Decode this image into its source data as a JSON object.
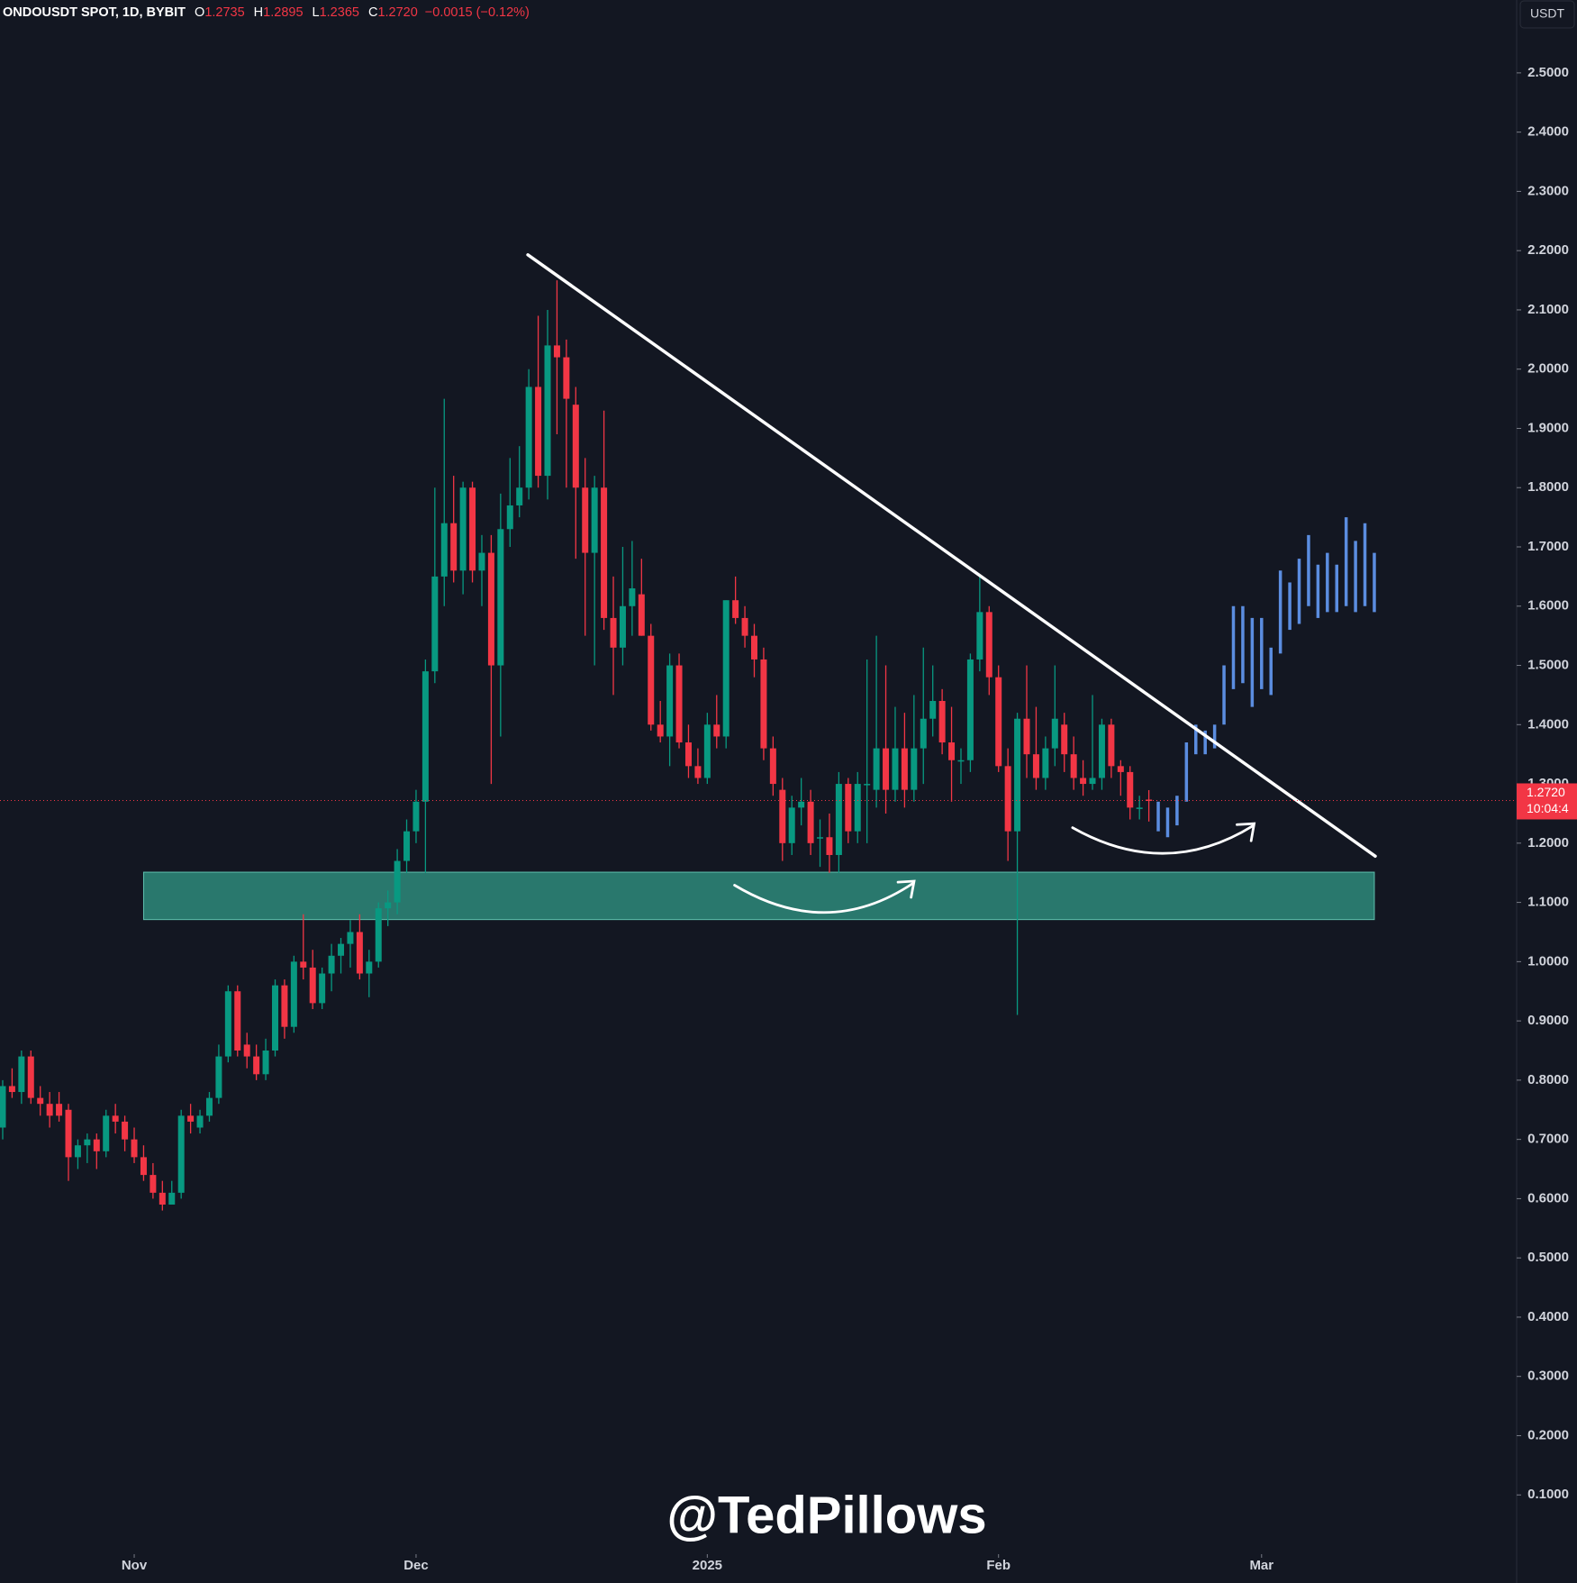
{
  "chart_data": {
    "type": "candlestick",
    "title": "ONDOUSDT SPOT, 1D, BYBIT",
    "header": {
      "O": "1.2735",
      "H": "1.2895",
      "L": "1.2365",
      "C": "1.2720",
      "change": "−0.0015 (−0.12%)"
    },
    "o_key": "O",
    "h_key": "H",
    "l_key": "L",
    "c_key": "C",
    "currency": "USDT",
    "watermark": "@TedPillows",
    "price_label": {
      "price": "1.2720",
      "countdown": "10:04:4"
    },
    "up_color": "#089981",
    "down_color": "#f23645",
    "projection_color": "#5b8de0",
    "zone_color": "#2e8a7a",
    "candles": [
      [
        0.72,
        0.8,
        0.7,
        0.79
      ],
      [
        0.79,
        0.82,
        0.77,
        0.78
      ],
      [
        0.78,
        0.85,
        0.76,
        0.84
      ],
      [
        0.84,
        0.85,
        0.76,
        0.77
      ],
      [
        0.77,
        0.79,
        0.74,
        0.76
      ],
      [
        0.76,
        0.78,
        0.72,
        0.74
      ],
      [
        0.76,
        0.78,
        0.73,
        0.74
      ],
      [
        0.75,
        0.76,
        0.63,
        0.67
      ],
      [
        0.67,
        0.7,
        0.65,
        0.69
      ],
      [
        0.69,
        0.71,
        0.66,
        0.7
      ],
      [
        0.7,
        0.71,
        0.65,
        0.68
      ],
      [
        0.68,
        0.75,
        0.67,
        0.74
      ],
      [
        0.74,
        0.76,
        0.71,
        0.73
      ],
      [
        0.73,
        0.74,
        0.68,
        0.7
      ],
      [
        0.7,
        0.72,
        0.66,
        0.67
      ],
      [
        0.67,
        0.69,
        0.63,
        0.64
      ],
      [
        0.64,
        0.66,
        0.6,
        0.61
      ],
      [
        0.61,
        0.63,
        0.58,
        0.59
      ],
      [
        0.59,
        0.63,
        0.59,
        0.61
      ],
      [
        0.61,
        0.75,
        0.6,
        0.74
      ],
      [
        0.74,
        0.76,
        0.71,
        0.73
      ],
      [
        0.72,
        0.75,
        0.71,
        0.74
      ],
      [
        0.74,
        0.78,
        0.73,
        0.77
      ],
      [
        0.77,
        0.86,
        0.76,
        0.84
      ],
      [
        0.84,
        0.96,
        0.83,
        0.95
      ],
      [
        0.95,
        0.96,
        0.84,
        0.85
      ],
      [
        0.86,
        0.88,
        0.82,
        0.84
      ],
      [
        0.84,
        0.86,
        0.8,
        0.81
      ],
      [
        0.81,
        0.87,
        0.8,
        0.85
      ],
      [
        0.85,
        0.97,
        0.84,
        0.96
      ],
      [
        0.96,
        0.97,
        0.87,
        0.89
      ],
      [
        0.89,
        1.01,
        0.88,
        1.0
      ],
      [
        1.0,
        1.08,
        0.97,
        0.99
      ],
      [
        0.99,
        1.02,
        0.92,
        0.93
      ],
      [
        0.93,
        0.99,
        0.92,
        0.98
      ],
      [
        0.98,
        1.03,
        0.95,
        1.01
      ],
      [
        1.01,
        1.04,
        0.98,
        1.03
      ],
      [
        1.03,
        1.07,
        0.99,
        1.05
      ],
      [
        1.05,
        1.08,
        0.97,
        0.98
      ],
      [
        0.98,
        1.02,
        0.94,
        1.0
      ],
      [
        1.0,
        1.1,
        0.99,
        1.09
      ],
      [
        1.09,
        1.12,
        1.06,
        1.1
      ],
      [
        1.1,
        1.19,
        1.08,
        1.17
      ],
      [
        1.17,
        1.24,
        1.15,
        1.22
      ],
      [
        1.22,
        1.29,
        1.2,
        1.27
      ],
      [
        1.27,
        1.51,
        1.15,
        1.49
      ],
      [
        1.49,
        1.8,
        1.47,
        1.65
      ],
      [
        1.65,
        1.95,
        1.6,
        1.74
      ],
      [
        1.74,
        1.82,
        1.64,
        1.66
      ],
      [
        1.66,
        1.81,
        1.62,
        1.8
      ],
      [
        1.8,
        1.81,
        1.64,
        1.66
      ],
      [
        1.66,
        1.72,
        1.6,
        1.69
      ],
      [
        1.69,
        1.72,
        1.3,
        1.5
      ],
      [
        1.5,
        1.79,
        1.38,
        1.73
      ],
      [
        1.73,
        1.85,
        1.7,
        1.77
      ],
      [
        1.77,
        1.87,
        1.75,
        1.8
      ],
      [
        1.8,
        2.0,
        1.78,
        1.97
      ],
      [
        1.97,
        2.09,
        1.8,
        1.82
      ],
      [
        1.82,
        2.1,
        1.78,
        2.04
      ],
      [
        2.04,
        2.15,
        1.89,
        2.02
      ],
      [
        2.02,
        2.05,
        1.8,
        1.95
      ],
      [
        1.94,
        1.97,
        1.68,
        1.8
      ],
      [
        1.8,
        1.85,
        1.55,
        1.69
      ],
      [
        1.69,
        1.82,
        1.5,
        1.8
      ],
      [
        1.8,
        1.93,
        1.56,
        1.58
      ],
      [
        1.58,
        1.65,
        1.45,
        1.53
      ],
      [
        1.53,
        1.7,
        1.5,
        1.6
      ],
      [
        1.6,
        1.71,
        1.55,
        1.63
      ],
      [
        1.62,
        1.68,
        1.55,
        1.55
      ],
      [
        1.55,
        1.57,
        1.39,
        1.4
      ],
      [
        1.4,
        1.44,
        1.37,
        1.38
      ],
      [
        1.38,
        1.52,
        1.33,
        1.5
      ],
      [
        1.5,
        1.52,
        1.36,
        1.37
      ],
      [
        1.37,
        1.4,
        1.31,
        1.33
      ],
      [
        1.33,
        1.36,
        1.3,
        1.31
      ],
      [
        1.31,
        1.42,
        1.3,
        1.4
      ],
      [
        1.4,
        1.45,
        1.36,
        1.38
      ],
      [
        1.38,
        1.61,
        1.36,
        1.61
      ],
      [
        1.61,
        1.65,
        1.57,
        1.58
      ],
      [
        1.58,
        1.6,
        1.53,
        1.55
      ],
      [
        1.55,
        1.57,
        1.48,
        1.51
      ],
      [
        1.51,
        1.53,
        1.34,
        1.36
      ],
      [
        1.36,
        1.38,
        1.28,
        1.3
      ],
      [
        1.29,
        1.31,
        1.17,
        1.2
      ],
      [
        1.2,
        1.28,
        1.18,
        1.26
      ],
      [
        1.26,
        1.31,
        1.23,
        1.27
      ],
      [
        1.27,
        1.29,
        1.18,
        1.2
      ],
      [
        1.21,
        1.24,
        1.16,
        1.21
      ],
      [
        1.21,
        1.25,
        1.15,
        1.18
      ],
      [
        1.18,
        1.32,
        1.15,
        1.3
      ],
      [
        1.3,
        1.31,
        1.2,
        1.22
      ],
      [
        1.22,
        1.32,
        1.2,
        1.3
      ],
      [
        1.3,
        1.51,
        1.2,
        1.3
      ],
      [
        1.29,
        1.55,
        1.26,
        1.36
      ],
      [
        1.36,
        1.5,
        1.25,
        1.29
      ],
      [
        1.29,
        1.43,
        1.27,
        1.36
      ],
      [
        1.36,
        1.42,
        1.26,
        1.29
      ],
      [
        1.29,
        1.45,
        1.27,
        1.36
      ],
      [
        1.36,
        1.53,
        1.3,
        1.41
      ],
      [
        1.41,
        1.5,
        1.38,
        1.44
      ],
      [
        1.44,
        1.46,
        1.35,
        1.37
      ],
      [
        1.37,
        1.43,
        1.27,
        1.34
      ],
      [
        1.34,
        1.36,
        1.3,
        1.34
      ],
      [
        1.34,
        1.52,
        1.32,
        1.51
      ],
      [
        1.51,
        1.65,
        1.49,
        1.59
      ],
      [
        1.59,
        1.6,
        1.45,
        1.48
      ],
      [
        1.48,
        1.5,
        1.32,
        1.33
      ],
      [
        1.33,
        1.36,
        1.17,
        1.22
      ],
      [
        1.22,
        1.42,
        0.91,
        1.41
      ],
      [
        1.41,
        1.5,
        1.31,
        1.35
      ],
      [
        1.35,
        1.43,
        1.29,
        1.31
      ],
      [
        1.31,
        1.38,
        1.29,
        1.36
      ],
      [
        1.36,
        1.5,
        1.33,
        1.41
      ],
      [
        1.4,
        1.42,
        1.32,
        1.35
      ],
      [
        1.35,
        1.38,
        1.29,
        1.31
      ],
      [
        1.31,
        1.34,
        1.28,
        1.3
      ],
      [
        1.3,
        1.45,
        1.29,
        1.31
      ],
      [
        1.31,
        1.41,
        1.29,
        1.4
      ],
      [
        1.4,
        1.41,
        1.31,
        1.33
      ],
      [
        1.33,
        1.34,
        1.28,
        1.32
      ],
      [
        1.32,
        1.33,
        1.24,
        1.26
      ],
      [
        1.26,
        1.28,
        1.24,
        1.26
      ],
      [
        1.2735,
        1.2895,
        1.2365,
        1.272
      ]
    ],
    "projection": [
      [
        1.22,
        1.27
      ],
      [
        1.21,
        1.26
      ],
      [
        1.23,
        1.28
      ],
      [
        1.27,
        1.37
      ],
      [
        1.35,
        1.4
      ],
      [
        1.35,
        1.39
      ],
      [
        1.36,
        1.4
      ],
      [
        1.4,
        1.5
      ],
      [
        1.46,
        1.6
      ],
      [
        1.47,
        1.6
      ],
      [
        1.43,
        1.58
      ],
      [
        1.46,
        1.58
      ],
      [
        1.45,
        1.53
      ],
      [
        1.52,
        1.66
      ],
      [
        1.56,
        1.64
      ],
      [
        1.57,
        1.68
      ],
      [
        1.6,
        1.72
      ],
      [
        1.58,
        1.67
      ],
      [
        1.59,
        1.69
      ],
      [
        1.59,
        1.67
      ],
      [
        1.6,
        1.75
      ],
      [
        1.59,
        1.71
      ],
      [
        1.6,
        1.74
      ],
      [
        1.59,
        1.69
      ]
    ],
    "trendline": {
      "x": [
        55.9,
        146.1
      ],
      "y": [
        2.193,
        1.178
      ]
    },
    "zone": {
      "x": [
        15,
        146
      ],
      "y": [
        1.071,
        1.151
      ]
    },
    "xlim": [
      -0.286,
      161.15
    ],
    "ylim": [
      0,
      2.623
    ],
    "xticks": [
      {
        "value": 14,
        "label": "Nov"
      },
      {
        "value": 44,
        "label": "Dec"
      },
      {
        "value": 75,
        "label": "2025"
      },
      {
        "value": 106,
        "label": "Feb"
      },
      {
        "value": 134,
        "label": "Mar"
      }
    ],
    "yticks": [
      {
        "value": 0.1,
        "label": "0.1000"
      },
      {
        "value": 0.2,
        "label": "0.2000"
      },
      {
        "value": 0.3,
        "label": "0.3000"
      },
      {
        "value": 0.4,
        "label": "0.4000"
      },
      {
        "value": 0.5,
        "label": "0.5000"
      },
      {
        "value": 0.6,
        "label": "0.6000"
      },
      {
        "value": 0.7,
        "label": "0.7000"
      },
      {
        "value": 0.8,
        "label": "0.8000"
      },
      {
        "value": 0.9,
        "label": "0.9000"
      },
      {
        "value": 1.0,
        "label": "1.0000"
      },
      {
        "value": 1.1,
        "label": "1.1000"
      },
      {
        "value": 1.2,
        "label": "1.2000"
      },
      {
        "value": 1.3,
        "label": "1.3000"
      },
      {
        "value": 1.4,
        "label": "1.4000"
      },
      {
        "value": 1.5,
        "label": "1.5000"
      },
      {
        "value": 1.6,
        "label": "1.6000"
      },
      {
        "value": 1.7,
        "label": "1.7000"
      },
      {
        "value": 1.8,
        "label": "1.8000"
      },
      {
        "value": 1.9,
        "label": "1.9000"
      },
      {
        "value": 2.0,
        "label": "2.0000"
      },
      {
        "value": 2.1,
        "label": "2.1000"
      },
      {
        "value": 2.2,
        "label": "2.2000"
      },
      {
        "value": 2.3,
        "label": "2.3000"
      },
      {
        "value": 2.4,
        "label": "2.4000"
      },
      {
        "value": 2.5,
        "label": "2.5000"
      }
    ]
  }
}
